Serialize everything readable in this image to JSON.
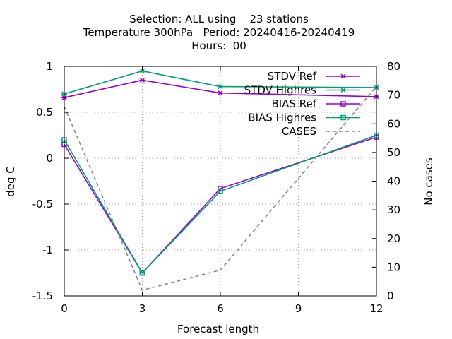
{
  "title": {
    "line1": "Selection: ALL using    23 stations",
    "line2": "Temperature 300hPa   Period: 20240416-20240419",
    "line3": "Hours:  00"
  },
  "colors": {
    "ref": "#9400d3",
    "highres": "#009e73",
    "cases": "#808080"
  },
  "chart_data": {
    "type": "line",
    "xlabel": "Forecast length",
    "ylabel": "deg C",
    "y2label": "No cases",
    "x": [
      0,
      3,
      6,
      9,
      12
    ],
    "xticks": [
      "0",
      "3",
      "6",
      "9",
      "12"
    ],
    "ylim": [
      -1.5,
      1
    ],
    "yticks": [
      "1",
      "0.5",
      "0",
      "-0.5",
      "-1",
      "-1.5"
    ],
    "y2lim": [
      0,
      80
    ],
    "y2ticks": [
      "80",
      "70",
      "60",
      "50",
      "40",
      "30",
      "20",
      "10",
      "0"
    ],
    "grid": true,
    "legend_position": "top-right",
    "series": [
      {
        "name": "STDV Ref",
        "axis": "y",
        "x": [
          0,
          3,
          6,
          12
        ],
        "values": [
          0.66,
          0.85,
          0.71,
          0.67
        ],
        "color": "#9400d3",
        "marker": "star",
        "dash": false
      },
      {
        "name": "STDV Highres",
        "axis": "y",
        "x": [
          0,
          3,
          6,
          12
        ],
        "values": [
          0.7,
          0.95,
          0.78,
          0.77
        ],
        "color": "#009e73",
        "marker": "star",
        "dash": false
      },
      {
        "name": "BIAS Ref",
        "axis": "y",
        "x": [
          0,
          3,
          6,
          12
        ],
        "values": [
          0.15,
          -1.25,
          -0.33,
          0.23
        ],
        "color": "#9400d3",
        "marker": "square",
        "dash": false
      },
      {
        "name": "BIAS Highres",
        "axis": "y",
        "x": [
          0,
          3,
          6,
          12
        ],
        "values": [
          0.2,
          -1.25,
          -0.36,
          0.25
        ],
        "color": "#009e73",
        "marker": "square",
        "dash": false
      },
      {
        "name": "CASES",
        "axis": "y2",
        "x": [
          0,
          3,
          6,
          12
        ],
        "values": [
          66,
          2,
          9,
          73
        ],
        "color": "#808080",
        "marker": "none",
        "dash": true
      }
    ]
  }
}
